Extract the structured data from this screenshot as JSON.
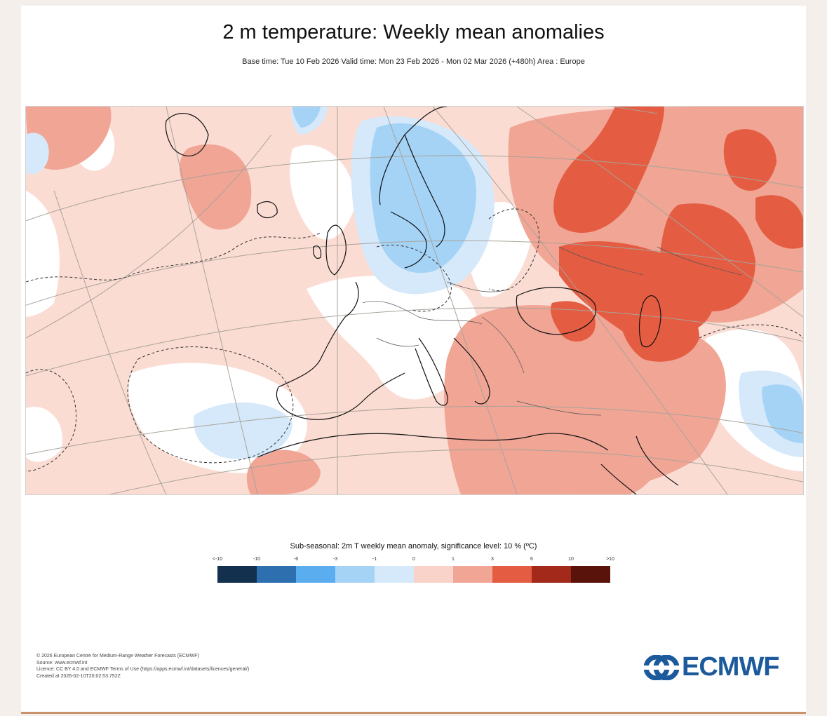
{
  "title": "2 m temperature: Weekly mean anomalies",
  "subtitle": "Base time: Tue 10 Feb 2026 Valid time: Mon 23 Feb 2026 - Mon 02 Mar 2026 (+480h) Area : Europe",
  "legend": {
    "title": "Sub-seasonal: 2m T weekly mean anomaly, significance level: 10 % (ºC)",
    "ticks": [
      "<-10",
      "-10",
      "-6",
      "-3",
      "-1",
      "0",
      "1",
      "3",
      "6",
      "10",
      ">10"
    ],
    "colors": [
      "#13304f",
      "#2e6faf",
      "#5aaef0",
      "#a5d3f6",
      "#d5e9fb",
      "#f9d3ca",
      "#f0a595",
      "#e45c41",
      "#a3291a",
      "#5a130b"
    ]
  },
  "footer": {
    "line1": "© 2026 European Centre for Medium-Range Weather Forecasts (ECMWF)",
    "line2": "Source: www.ecmwf.int",
    "line3": "Licence: CC BY 4.0 and ECMWF Terms of Use (https://apps.ecmwf.int/datasets/licences/general/)",
    "line4": "Created at 2026-02-10T20:02:53.752Z"
  },
  "logo": {
    "text": "ECMWF",
    "color": "#1c5a9c"
  },
  "map": {
    "area": "Europe",
    "colors": {
      "strong_warm": "#e45c41",
      "warm": "#f0a595",
      "slight_warm": "#f9d3ca",
      "neutral": "#ffffff",
      "slight_cool": "#d5e9fb",
      "cool": "#a5d3f6",
      "coast": "#111111",
      "grid": "#a9a39a"
    }
  }
}
